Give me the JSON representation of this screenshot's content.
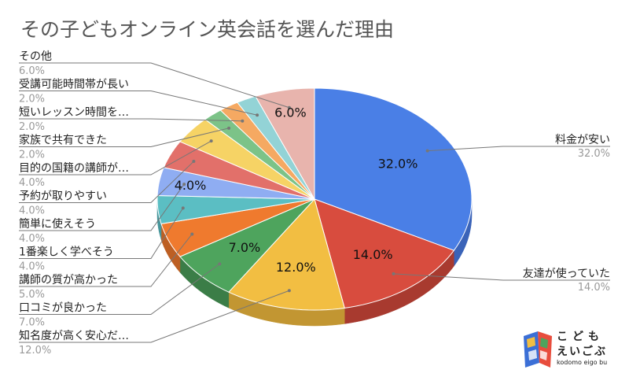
{
  "chart_data": {
    "type": "pie",
    "title": "その子どもオンライン英会話を選んだ理由",
    "slices": [
      {
        "label": "料金が安い",
        "value": 32.0,
        "pct_label": "32.0%",
        "color": "#4a7fe6",
        "side": "#3a63b8"
      },
      {
        "label": "友達が使っていた",
        "value": 14.0,
        "pct_label": "14.0%",
        "color": "#d84c3e",
        "side": "#a83a2f"
      },
      {
        "label": "知名度が高く安心だ…",
        "value": 12.0,
        "pct_label": "12.0%",
        "color": "#f2be42",
        "side": "#c29632"
      },
      {
        "label": "口コミが良かった",
        "value": 7.0,
        "pct_label": "7.0%",
        "color": "#4ea45d",
        "side": "#3b7d47"
      },
      {
        "label": "講師の質が高かった",
        "value": 5.0,
        "pct_label": "5.0%",
        "color": "#ef7a2e",
        "side": "#bd5f23"
      },
      {
        "label": "1番楽しく学べそう",
        "value": 4.0,
        "pct_label": "4.0%",
        "color": "#5bbec3",
        "side": "#46959a"
      },
      {
        "label": "簡単に使えそう",
        "value": 4.0,
        "pct_label": "4.0%",
        "color": "#8fadf2",
        "side": "#6f88c0"
      },
      {
        "label": "予約が取りやすい",
        "value": 4.0,
        "pct_label": "4.0%",
        "color": "#e2706a",
        "side": "#b25650"
      },
      {
        "label": "目的の国籍の講師が…",
        "value": 4.0,
        "pct_label": "4.0%",
        "color": "#f6d365",
        "side": "#c4a74e"
      },
      {
        "label": "家族で共有できた",
        "value": 2.0,
        "pct_label": "2.0%",
        "color": "#7cc388",
        "side": "#5f996a"
      },
      {
        "label": "短いレッスン時間を…",
        "value": 2.0,
        "pct_label": "2.0%",
        "color": "#f5a962",
        "side": "#c3864d"
      },
      {
        "label": "受講可能時間帯が長い",
        "value": 2.0,
        "pct_label": "2.0%",
        "color": "#93d3d6",
        "side": "#72a8ab"
      },
      {
        "label": "その他",
        "value": 6.0,
        "pct_label": "6.0%",
        "color": "#e8b4ad",
        "side": "#b98e88"
      }
    ],
    "inner_labels": {
      "料金が安い": "32.0%",
      "友達が使っていた": "14.0%",
      "知名度が高く安心だ…": "12.0%",
      "口コミが良かった": "7.0%",
      "簡単に使えそう": "4.0%",
      "その他": "6.0%"
    },
    "legend": "callouts"
  },
  "logo": {
    "line1": "こども",
    "line2": "えいごぶ",
    "line3": "kodomo eigo bu"
  }
}
